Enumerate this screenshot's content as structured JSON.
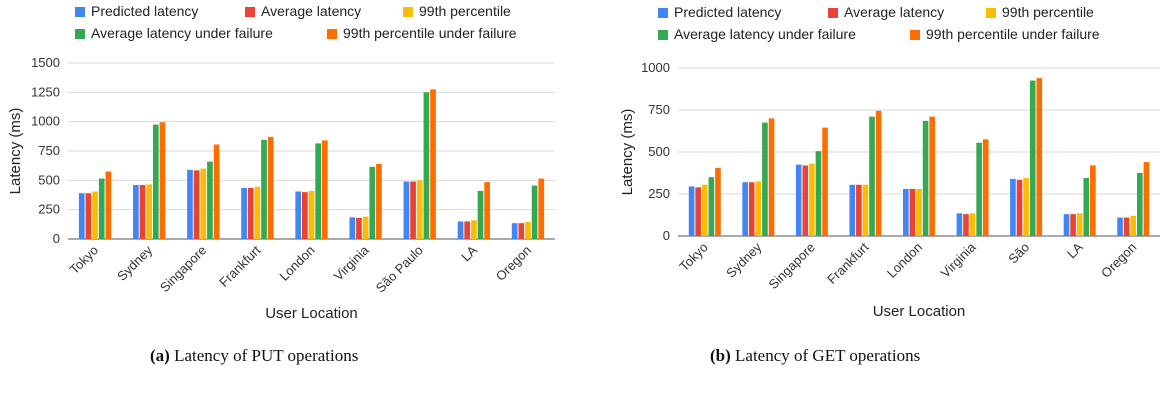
{
  "captions": [
    {
      "label": "(a)",
      "text": "Latency of PUT operations"
    },
    {
      "label": "(b)",
      "text": "Latency of GET operations"
    }
  ],
  "colors": {
    "series": [
      "#4285F4",
      "#EA4335",
      "#FBBC04",
      "#34A853",
      "#FF6D01"
    ],
    "grid": "#d9d9d9",
    "axis": "#555555"
  },
  "chart_data": [
    {
      "type": "bar",
      "title": "",
      "xlabel": "User Location",
      "ylabel": "Latency (ms)",
      "ylim": [
        0,
        1500
      ],
      "yticks": [
        0,
        250,
        500,
        750,
        1000,
        1250,
        1500
      ],
      "grid": true,
      "legend": "top",
      "categories": [
        "Tokyo",
        "Sydney",
        "Singapore",
        "Frankfurt",
        "London",
        "Virginia",
        "São Paulo",
        "LA",
        "Oregon"
      ],
      "series": [
        {
          "name": "Predicted latency",
          "values": [
            390,
            460,
            590,
            435,
            405,
            185,
            490,
            150,
            135
          ]
        },
        {
          "name": "Average latency",
          "values": [
            390,
            460,
            585,
            435,
            400,
            180,
            490,
            150,
            135
          ]
        },
        {
          "name": "99th percentile",
          "values": [
            405,
            465,
            600,
            445,
            410,
            190,
            500,
            160,
            145
          ]
        },
        {
          "name": "Average latency under failure",
          "values": [
            515,
            975,
            660,
            845,
            815,
            615,
            1250,
            410,
            455
          ]
        },
        {
          "name": "99th percentile under failure",
          "values": [
            575,
            995,
            805,
            870,
            840,
            640,
            1275,
            485,
            515
          ]
        }
      ]
    },
    {
      "type": "bar",
      "title": "",
      "xlabel": "User Location",
      "ylabel": "Latency (ms)",
      "ylim": [
        0,
        1000
      ],
      "yticks": [
        0,
        250,
        500,
        750,
        1000
      ],
      "grid": true,
      "legend": "top",
      "categories": [
        "Tokyo",
        "Sydney",
        "Singapore",
        "Frankfurt",
        "London",
        "Virginia",
        "São",
        "LA",
        "Oregon"
      ],
      "series": [
        {
          "name": "Predicted latency",
          "values": [
            295,
            320,
            425,
            305,
            280,
            135,
            340,
            130,
            110
          ]
        },
        {
          "name": "Average latency",
          "values": [
            290,
            320,
            420,
            305,
            280,
            130,
            335,
            130,
            110
          ]
        },
        {
          "name": "99th percentile",
          "values": [
            305,
            325,
            430,
            305,
            280,
            135,
            345,
            135,
            120
          ]
        },
        {
          "name": "Average latency under failure",
          "values": [
            350,
            675,
            505,
            710,
            685,
            555,
            925,
            345,
            375
          ]
        },
        {
          "name": "99th percentile under failure",
          "values": [
            405,
            700,
            645,
            745,
            710,
            575,
            940,
            420,
            440
          ]
        }
      ]
    }
  ]
}
